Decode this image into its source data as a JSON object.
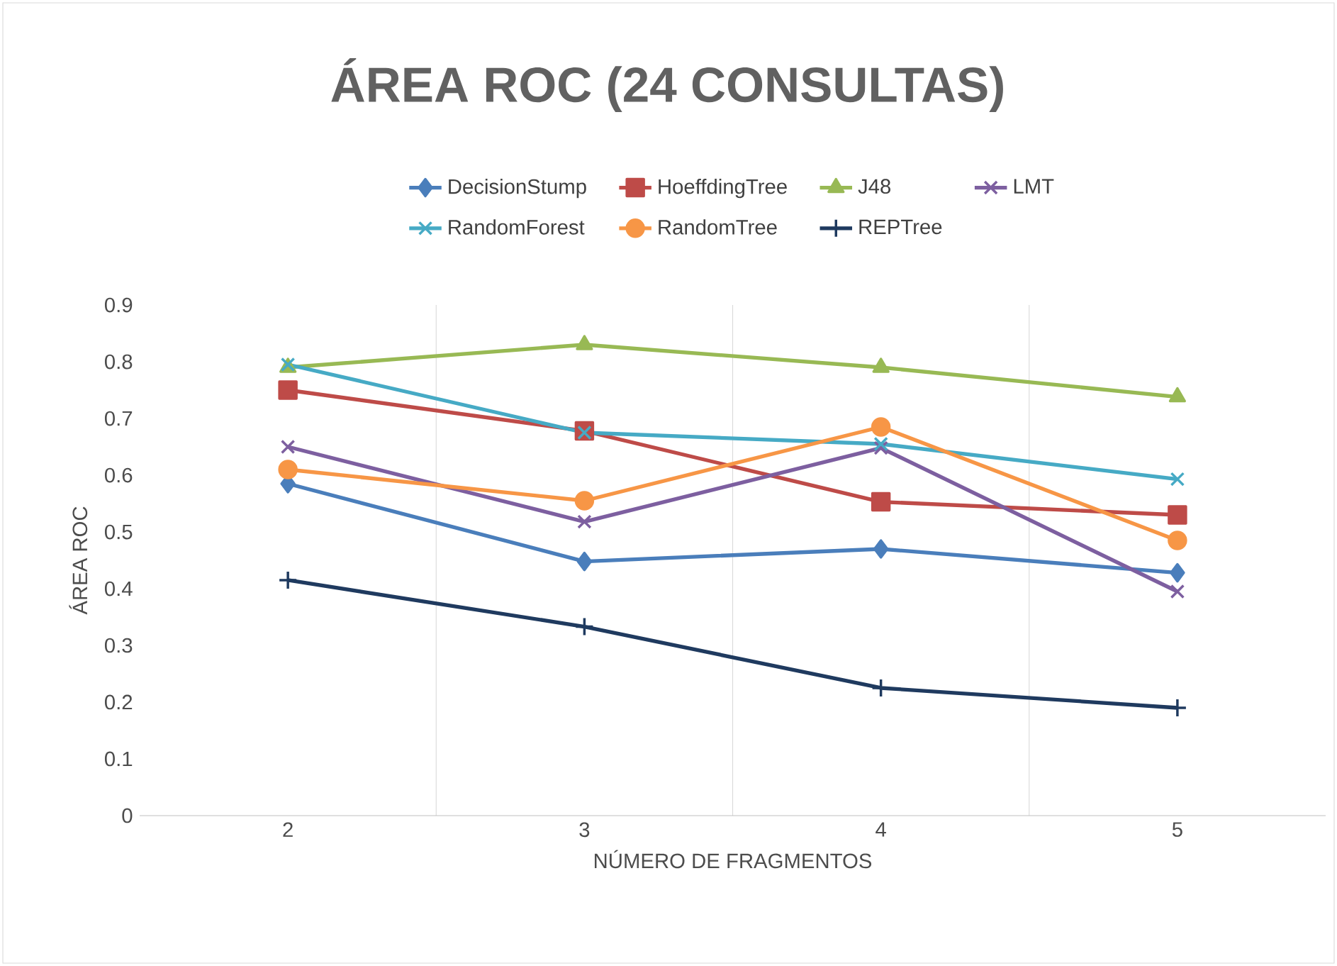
{
  "chart_data": {
    "type": "line",
    "title": "ÁREA ROC (24 CONSULTAS)",
    "xlabel": "NÚMERO DE FRAGMENTOS",
    "ylabel": "ÁREA ROC",
    "categories": [
      "2",
      "3",
      "4",
      "5"
    ],
    "series": [
      {
        "name": "DecisionStump",
        "color": "#4a7ebb",
        "marker": "diamond",
        "values": [
          0.585,
          0.448,
          0.47,
          0.428
        ]
      },
      {
        "name": "HoeffdingTree",
        "color": "#be4b48",
        "marker": "square",
        "values": [
          0.75,
          0.678,
          0.553,
          0.53
        ]
      },
      {
        "name": "J48",
        "color": "#98b954",
        "marker": "triangle",
        "values": [
          0.79,
          0.83,
          0.79,
          0.738
        ]
      },
      {
        "name": "LMT",
        "color": "#7d5fa0",
        "marker": "cross",
        "values": [
          0.65,
          0.518,
          0.648,
          0.395
        ]
      },
      {
        "name": "RandomForest",
        "color": "#46aac5",
        "marker": "cross",
        "values": [
          0.795,
          0.675,
          0.655,
          0.593
        ]
      },
      {
        "name": "RandomTree",
        "color": "#f79646",
        "marker": "circle",
        "values": [
          0.61,
          0.555,
          0.685,
          0.485
        ]
      },
      {
        "name": "REPTree",
        "color": "#1f3a5f",
        "marker": "plus",
        "values": [
          0.415,
          0.333,
          0.225,
          0.19
        ]
      }
    ],
    "ylim": [
      0,
      0.9
    ],
    "yticks": [
      0,
      0.1,
      0.2,
      0.3,
      0.4,
      0.5,
      0.6,
      0.7,
      0.8,
      0.9
    ],
    "grid": "x",
    "legend": "top",
    "line_style": "solid"
  }
}
